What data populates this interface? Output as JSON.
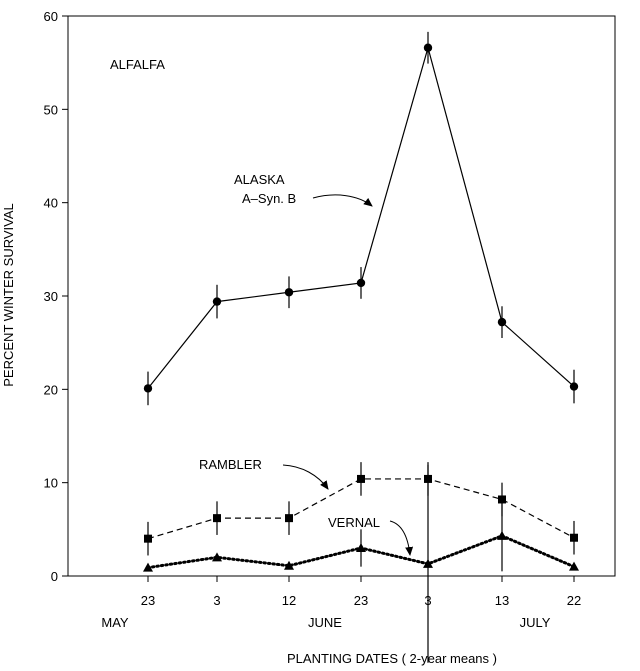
{
  "chart_data": {
    "type": "line",
    "panel_label": "ALFALFA",
    "xlabel": "PLANTING DATES ( 2-year means )",
    "ylabel": "PERCENT WINTER SURVIVAL",
    "ylim": [
      0,
      60
    ],
    "yticks": [
      0,
      10,
      20,
      30,
      40,
      50,
      60
    ],
    "categories": [
      "23",
      "3",
      "12",
      "23",
      "3",
      "13",
      "22"
    ],
    "month_labels": [
      {
        "label": "MAY",
        "at_index": 0
      },
      {
        "label": "JUNE",
        "at_index": 3
      },
      {
        "label": "JULY",
        "at_index": 6
      }
    ],
    "grid": false,
    "series": [
      {
        "name": "ALASKA A–Syn. B",
        "label_lines": [
          "ALASKA",
          "A–Syn. B"
        ],
        "marker": "circle",
        "line_style": "solid",
        "values": [
          20.1,
          29.4,
          30.4,
          31.4,
          56.6,
          27.2,
          20.3
        ],
        "error": [
          1.8,
          1.8,
          1.7,
          1.7,
          1.7,
          1.7,
          1.8
        ]
      },
      {
        "name": "RAMBLER",
        "label_lines": [
          "RAMBLER"
        ],
        "marker": "square",
        "line_style": "dashed",
        "values": [
          4.0,
          6.2,
          6.2,
          10.4,
          10.4,
          8.2,
          4.1
        ],
        "error": [
          1.8,
          1.8,
          1.8,
          1.8,
          1.8,
          1.8,
          1.8
        ]
      },
      {
        "name": "VERNAL",
        "label_lines": [
          "VERNAL"
        ],
        "marker": "triangle",
        "line_style": "dotted",
        "values": [
          0.9,
          2.0,
          1.1,
          3.0,
          1.3,
          4.3,
          1.0
        ],
        "error": [
          0,
          0,
          0,
          2.0,
          10.6,
          3.8,
          0
        ]
      }
    ]
  }
}
